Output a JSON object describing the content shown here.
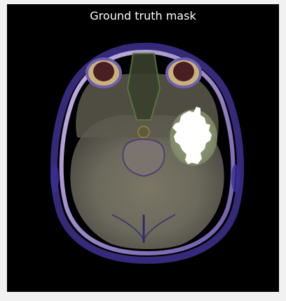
{
  "figure": {
    "title": "Ground truth mask",
    "background": "#000000",
    "page_background": "#f1f1f1",
    "mask_color": "#ffffff",
    "image": {
      "description_icon": "mri-axial-brain-scan",
      "has_segmentation_mask": true
    }
  }
}
